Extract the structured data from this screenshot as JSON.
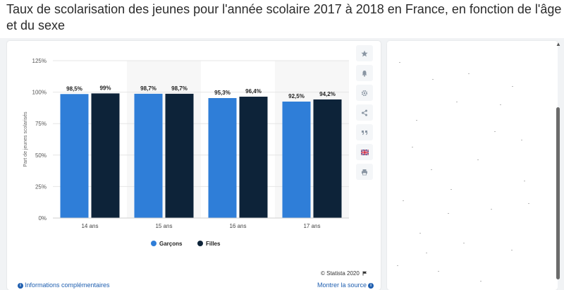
{
  "page": {
    "title": "Taux de scolarisation des jeunes pour l'année scolaire 2017 à 2018 en France, en fonction de l'âge et du sexe"
  },
  "chart_data": {
    "type": "bar",
    "title": "",
    "ylabel": "Part de jeunes scolarisés",
    "xlabel": "",
    "ylim": [
      0,
      125
    ],
    "yticks": [
      0,
      25,
      50,
      75,
      100,
      125
    ],
    "ytick_labels": [
      "0%",
      "25%",
      "50%",
      "75%",
      "100%",
      "125%"
    ],
    "categories": [
      "14 ans",
      "15 ans",
      "16 ans",
      "17 ans"
    ],
    "series": [
      {
        "name": "Garçons",
        "values": [
          98.5,
          98.7,
          95.3,
          92.5
        ],
        "labels": [
          "98,5%",
          "98,7%",
          "95,3%",
          "92,5%"
        ],
        "color": "#2f7ed8"
      },
      {
        "name": "Filles",
        "values": [
          99,
          98.7,
          96.4,
          94.2
        ],
        "labels": [
          "99%",
          "98,7%",
          "96,4%",
          "94,2%"
        ],
        "color": "#0d2339"
      }
    ],
    "grid": true,
    "legend": "bottom-center"
  },
  "footer": {
    "copyright": "© Statista 2020",
    "more_info": "Informations complémentaires",
    "show_source": "Montrer la source"
  },
  "tools": [
    {
      "icon": "star-icon"
    },
    {
      "icon": "bell-icon"
    },
    {
      "icon": "gear-icon"
    },
    {
      "icon": "share-icon"
    },
    {
      "icon": "quote-icon"
    },
    {
      "icon": "flag-icon"
    },
    {
      "icon": "print-icon"
    }
  ]
}
